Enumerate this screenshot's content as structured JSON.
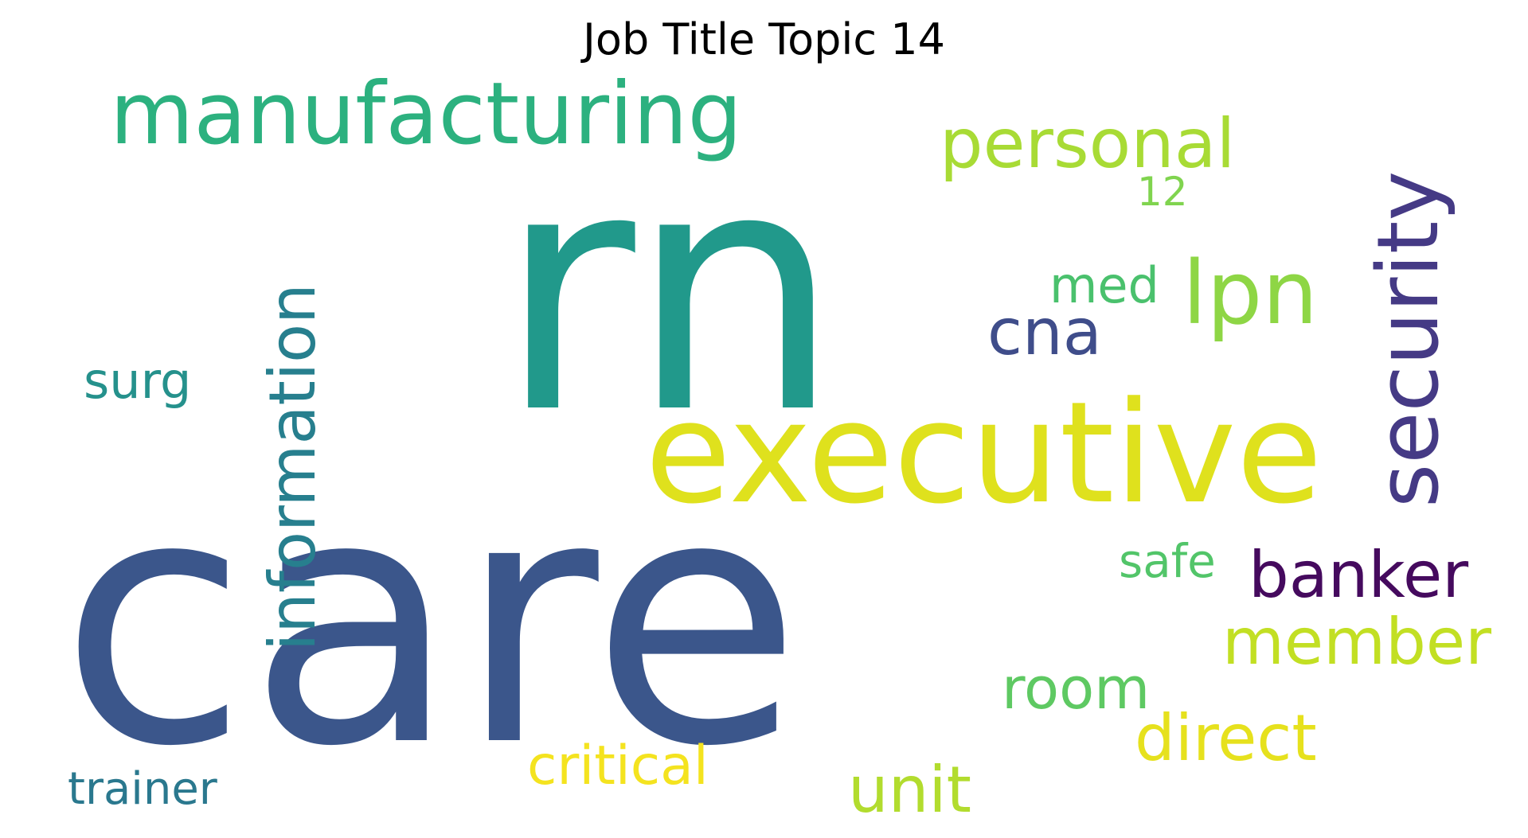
{
  "title": "Job Title Topic 14",
  "words": [
    {
      "text": "rn",
      "color": "#21998b"
    },
    {
      "text": "care",
      "color": "#3b568b"
    },
    {
      "text": "executive",
      "color": "#dfe11d"
    },
    {
      "text": "manufacturing",
      "color": "#2cb17f"
    },
    {
      "text": "security",
      "color": "#453a85"
    },
    {
      "text": "information",
      "color": "#277f8e"
    },
    {
      "text": "personal",
      "color": "#a8db35"
    },
    {
      "text": "lpn",
      "color": "#8ed645"
    },
    {
      "text": "banker",
      "color": "#450a5e"
    },
    {
      "text": "member",
      "color": "#c2df23"
    },
    {
      "text": "direct",
      "color": "#e6e11d"
    },
    {
      "text": "cna",
      "color": "#3f4d8a"
    },
    {
      "text": "unit",
      "color": "#b2dc2e"
    },
    {
      "text": "room",
      "color": "#5ec962"
    },
    {
      "text": "critical",
      "color": "#f4e31f"
    },
    {
      "text": "trainer",
      "color": "#2a788e"
    },
    {
      "text": "surg",
      "color": "#25918c"
    },
    {
      "text": "med",
      "color": "#4ac16d"
    },
    {
      "text": "safe",
      "color": "#52c569"
    },
    {
      "text": "12",
      "color": "#80d44f"
    }
  ]
}
